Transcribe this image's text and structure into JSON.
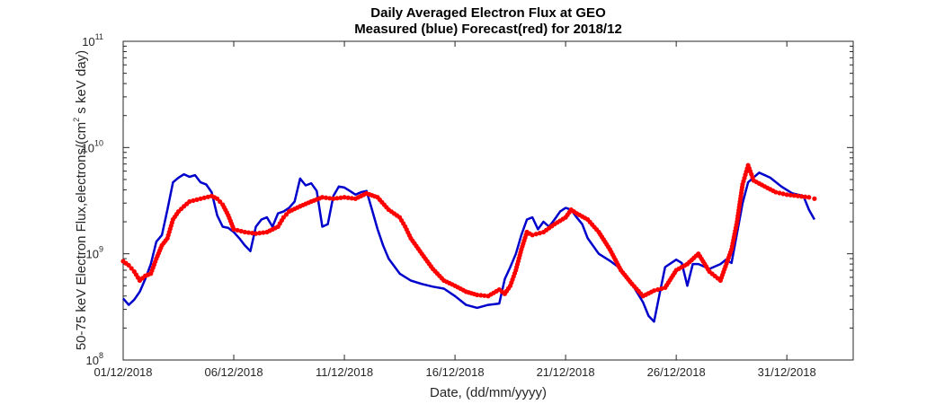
{
  "chart_data": {
    "type": "line",
    "title": "Daily Averaged Electron Flux at GEO",
    "subtitle": "Measured (blue) Forecast(red) for 2018/12",
    "xlabel": "Date, (dd/mm/yyyy)",
    "ylabel_parts": [
      "50-75 keV Electron Flux,electrons/(cm",
      "2",
      " s keV day)"
    ],
    "x_axis": {
      "type": "date",
      "min": "2018-12-01",
      "max": "2019-01-03"
    },
    "y_axis": {
      "scale": "log",
      "min": 100000000,
      "max": 100000000000
    },
    "x_ticks": [
      {
        "date": "2018-12-01",
        "label": "01/12/2018"
      },
      {
        "date": "2018-12-06",
        "label": "06/12/2018"
      },
      {
        "date": "2018-12-11",
        "label": "11/12/2018"
      },
      {
        "date": "2018-12-16",
        "label": "16/12/2018"
      },
      {
        "date": "2018-12-21",
        "label": "21/12/2018"
      },
      {
        "date": "2018-12-26",
        "label": "26/12/2018"
      },
      {
        "date": "2018-12-31",
        "label": "31/12/2018"
      }
    ],
    "y_ticks": [
      {
        "value": 100000000,
        "base": "10",
        "exp": "8"
      },
      {
        "value": 1000000000,
        "base": "10",
        "exp": "9"
      },
      {
        "value": 10000000000,
        "base": "10",
        "exp": "10"
      },
      {
        "value": 100000000000,
        "base": "10",
        "exp": "11"
      }
    ],
    "grid": false,
    "series": [
      {
        "color": "#0000cc",
        "style": "line",
        "points": [
          [
            "2018-12-01T00:00",
            380000000
          ],
          [
            "2018-12-01T06:00",
            330000000
          ],
          [
            "2018-12-01T12:00",
            370000000
          ],
          [
            "2018-12-01T18:00",
            440000000
          ],
          [
            "2018-12-02T00:00",
            580000000
          ],
          [
            "2018-12-02T06:00",
            800000000
          ],
          [
            "2018-12-02T12:00",
            1300000000
          ],
          [
            "2018-12-02T18:00",
            1500000000
          ],
          [
            "2018-12-03T00:00",
            2600000000
          ],
          [
            "2018-12-03T06:00",
            4700000000
          ],
          [
            "2018-12-03T12:00",
            5200000000
          ],
          [
            "2018-12-03T18:00",
            5600000000
          ],
          [
            "2018-12-04T00:00",
            5300000000
          ],
          [
            "2018-12-04T06:00",
            5500000000
          ],
          [
            "2018-12-04T12:00",
            4700000000
          ],
          [
            "2018-12-04T18:00",
            4500000000
          ],
          [
            "2018-12-05T00:00",
            3800000000
          ],
          [
            "2018-12-05T06:00",
            2300000000
          ],
          [
            "2018-12-05T12:00",
            1800000000
          ],
          [
            "2018-12-05T18:00",
            1750000000
          ],
          [
            "2018-12-06T00:00",
            1600000000
          ],
          [
            "2018-12-06T06:00",
            1400000000
          ],
          [
            "2018-12-06T12:00",
            1200000000
          ],
          [
            "2018-12-06T18:00",
            1060000000
          ],
          [
            "2018-12-07T00:00",
            1800000000
          ],
          [
            "2018-12-07T06:00",
            2100000000
          ],
          [
            "2018-12-07T12:00",
            2200000000
          ],
          [
            "2018-12-07T18:00",
            1800000000
          ],
          [
            "2018-12-08T00:00",
            2400000000
          ],
          [
            "2018-12-08T06:00",
            2500000000
          ],
          [
            "2018-12-08T12:00",
            2700000000
          ],
          [
            "2018-12-08T18:00",
            3100000000
          ],
          [
            "2018-12-09T00:00",
            5100000000
          ],
          [
            "2018-12-09T06:00",
            4400000000
          ],
          [
            "2018-12-09T12:00",
            4600000000
          ],
          [
            "2018-12-09T18:00",
            3900000000
          ],
          [
            "2018-12-10T00:00",
            1800000000
          ],
          [
            "2018-12-10T06:00",
            1900000000
          ],
          [
            "2018-12-10T12:00",
            3500000000
          ],
          [
            "2018-12-10T18:00",
            4300000000
          ],
          [
            "2018-12-11T00:00",
            4200000000
          ],
          [
            "2018-12-11T06:00",
            3900000000
          ],
          [
            "2018-12-11T12:00",
            3600000000
          ],
          [
            "2018-12-11T18:00",
            3800000000
          ],
          [
            "2018-12-12T00:00",
            3900000000
          ],
          [
            "2018-12-12T06:00",
            2600000000
          ],
          [
            "2018-12-12T12:00",
            1700000000
          ],
          [
            "2018-12-12T18:00",
            1200000000
          ],
          [
            "2018-12-13T00:00",
            900000000
          ],
          [
            "2018-12-13T12:00",
            650000000
          ],
          [
            "2018-12-14T00:00",
            560000000
          ],
          [
            "2018-12-14T12:00",
            520000000
          ],
          [
            "2018-12-15T00:00",
            490000000
          ],
          [
            "2018-12-15T12:00",
            470000000
          ],
          [
            "2018-12-16T00:00",
            400000000
          ],
          [
            "2018-12-16T12:00",
            330000000
          ],
          [
            "2018-12-17T00:00",
            310000000
          ],
          [
            "2018-12-17T12:00",
            330000000
          ],
          [
            "2018-12-18T00:00",
            340000000
          ],
          [
            "2018-12-18T06:00",
            580000000
          ],
          [
            "2018-12-18T12:00",
            750000000
          ],
          [
            "2018-12-18T18:00",
            1000000000
          ],
          [
            "2018-12-19T00:00",
            1500000000
          ],
          [
            "2018-12-19T06:00",
            2100000000
          ],
          [
            "2018-12-19T12:00",
            2200000000
          ],
          [
            "2018-12-19T18:00",
            1700000000
          ],
          [
            "2018-12-20T00:00",
            2000000000
          ],
          [
            "2018-12-20T06:00",
            1800000000
          ],
          [
            "2018-12-20T12:00",
            2100000000
          ],
          [
            "2018-12-20T18:00",
            2500000000
          ],
          [
            "2018-12-21T00:00",
            2700000000
          ],
          [
            "2018-12-21T06:00",
            2600000000
          ],
          [
            "2018-12-21T12:00",
            2200000000
          ],
          [
            "2018-12-21T18:00",
            1900000000
          ],
          [
            "2018-12-22T00:00",
            1400000000
          ],
          [
            "2018-12-22T12:00",
            1000000000
          ],
          [
            "2018-12-23T00:00",
            860000000
          ],
          [
            "2018-12-23T12:00",
            720000000
          ],
          [
            "2018-12-24T00:00",
            520000000
          ],
          [
            "2018-12-24T12:00",
            350000000
          ],
          [
            "2018-12-24T18:00",
            260000000
          ],
          [
            "2018-12-25T00:00",
            230000000
          ],
          [
            "2018-12-25T06:00",
            420000000
          ],
          [
            "2018-12-25T12:00",
            750000000
          ],
          [
            "2018-12-26T00:00",
            880000000
          ],
          [
            "2018-12-26T06:00",
            820000000
          ],
          [
            "2018-12-26T12:00",
            500000000
          ],
          [
            "2018-12-26T18:00",
            800000000
          ],
          [
            "2018-12-27T00:00",
            800000000
          ],
          [
            "2018-12-27T12:00",
            720000000
          ],
          [
            "2018-12-28T00:00",
            800000000
          ],
          [
            "2018-12-28T06:00",
            880000000
          ],
          [
            "2018-12-28T12:00",
            820000000
          ],
          [
            "2018-12-29T00:00",
            3000000000
          ],
          [
            "2018-12-29T06:00",
            4700000000
          ],
          [
            "2018-12-29T18:00",
            5800000000
          ],
          [
            "2018-12-30T06:00",
            5200000000
          ],
          [
            "2018-12-30T18:00",
            4300000000
          ],
          [
            "2018-12-31T06:00",
            3700000000
          ],
          [
            "2018-12-31T18:00",
            3500000000
          ],
          [
            "2019-01-01T00:00",
            2600000000
          ],
          [
            "2019-01-01T06:00",
            2100000000
          ]
        ]
      },
      {
        "color": "#ff0000",
        "style": "markers",
        "points": [
          [
            "2018-12-01T00:00",
            850000000
          ],
          [
            "2018-12-01T06:00",
            780000000
          ],
          [
            "2018-12-01T12:00",
            680000000
          ],
          [
            "2018-12-01T18:00",
            560000000
          ],
          [
            "2018-12-02T00:00",
            620000000
          ],
          [
            "2018-12-02T06:00",
            650000000
          ],
          [
            "2018-12-02T12:00",
            900000000
          ],
          [
            "2018-12-02T18:00",
            1200000000
          ],
          [
            "2018-12-03T00:00",
            1400000000
          ],
          [
            "2018-12-03T06:00",
            2100000000
          ],
          [
            "2018-12-03T12:00",
            2500000000
          ],
          [
            "2018-12-03T18:00",
            2800000000
          ],
          [
            "2018-12-04T00:00",
            3100000000
          ],
          [
            "2018-12-04T12:00",
            3300000000
          ],
          [
            "2018-12-05T00:00",
            3500000000
          ],
          [
            "2018-12-05T06:00",
            3300000000
          ],
          [
            "2018-12-05T12:00",
            2900000000
          ],
          [
            "2018-12-05T18:00",
            2300000000
          ],
          [
            "2018-12-06T00:00",
            1700000000
          ],
          [
            "2018-12-06T12:00",
            1600000000
          ],
          [
            "2018-12-07T00:00",
            1550000000
          ],
          [
            "2018-12-07T12:00",
            1600000000
          ],
          [
            "2018-12-08T00:00",
            1800000000
          ],
          [
            "2018-12-08T06:00",
            2200000000
          ],
          [
            "2018-12-08T12:00",
            2500000000
          ],
          [
            "2018-12-09T00:00",
            2800000000
          ],
          [
            "2018-12-09T12:00",
            3100000000
          ],
          [
            "2018-12-10T00:00",
            3400000000
          ],
          [
            "2018-12-10T12:00",
            3300000000
          ],
          [
            "2018-12-11T00:00",
            3400000000
          ],
          [
            "2018-12-11T12:00",
            3300000000
          ],
          [
            "2018-12-12T00:00",
            3700000000
          ],
          [
            "2018-12-12T12:00",
            3400000000
          ],
          [
            "2018-12-13T00:00",
            2600000000
          ],
          [
            "2018-12-13T12:00",
            2200000000
          ],
          [
            "2018-12-13T18:00",
            1800000000
          ],
          [
            "2018-12-14T00:00",
            1400000000
          ],
          [
            "2018-12-14T12:00",
            1000000000
          ],
          [
            "2018-12-15T00:00",
            720000000
          ],
          [
            "2018-12-15T12:00",
            560000000
          ],
          [
            "2018-12-16T00:00",
            500000000
          ],
          [
            "2018-12-16T12:00",
            440000000
          ],
          [
            "2018-12-17T00:00",
            410000000
          ],
          [
            "2018-12-17T12:00",
            400000000
          ],
          [
            "2018-12-18T00:00",
            460000000
          ],
          [
            "2018-12-18T06:00",
            420000000
          ],
          [
            "2018-12-18T12:00",
            500000000
          ],
          [
            "2018-12-18T18:00",
            700000000
          ],
          [
            "2018-12-19T00:00",
            1100000000
          ],
          [
            "2018-12-19T06:00",
            1600000000
          ],
          [
            "2018-12-19T12:00",
            1500000000
          ],
          [
            "2018-12-20T00:00",
            1600000000
          ],
          [
            "2018-12-20T12:00",
            1900000000
          ],
          [
            "2018-12-21T00:00",
            2200000000
          ],
          [
            "2018-12-21T06:00",
            2600000000
          ],
          [
            "2018-12-21T12:00",
            2400000000
          ],
          [
            "2018-12-22T00:00",
            2100000000
          ],
          [
            "2018-12-22T12:00",
            1600000000
          ],
          [
            "2018-12-23T00:00",
            1100000000
          ],
          [
            "2018-12-23T12:00",
            700000000
          ],
          [
            "2018-12-24T00:00",
            520000000
          ],
          [
            "2018-12-24T12:00",
            400000000
          ],
          [
            "2018-12-25T00:00",
            450000000
          ],
          [
            "2018-12-25T12:00",
            480000000
          ],
          [
            "2018-12-26T00:00",
            700000000
          ],
          [
            "2018-12-26T12:00",
            800000000
          ],
          [
            "2018-12-27T00:00",
            1000000000
          ],
          [
            "2018-12-27T12:00",
            680000000
          ],
          [
            "2018-12-28T00:00",
            560000000
          ],
          [
            "2018-12-28T12:00",
            1100000000
          ],
          [
            "2018-12-28T18:00",
            2000000000
          ],
          [
            "2018-12-29T00:00",
            4500000000
          ],
          [
            "2018-12-29T06:00",
            6800000000
          ],
          [
            "2018-12-29T12:00",
            4900000000
          ],
          [
            "2018-12-30T00:00",
            4300000000
          ],
          [
            "2018-12-30T12:00",
            3800000000
          ],
          [
            "2018-12-31T00:00",
            3600000000
          ],
          [
            "2018-12-31T12:00",
            3500000000
          ],
          [
            "2019-01-01T00:00",
            3400000000
          ],
          [
            "2019-01-01T06:00",
            3300000000
          ]
        ]
      }
    ]
  }
}
